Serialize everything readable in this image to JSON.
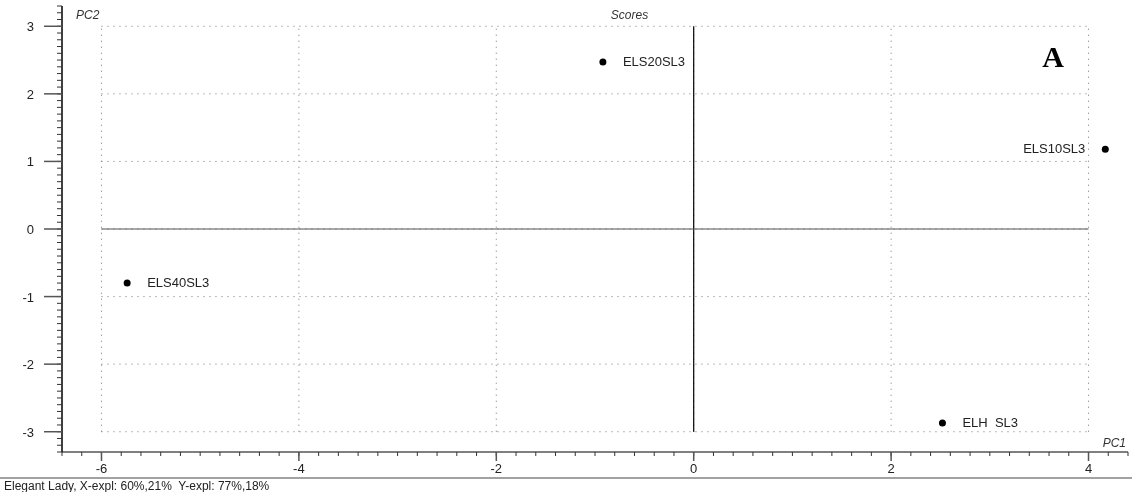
{
  "chart_data": {
    "type": "scatter",
    "title": "Scores",
    "xlabel": "PC1",
    "ylabel": "PC2",
    "series": [
      {
        "name": "ELS20SL3",
        "color": "#000000",
        "x": [
          -0.92
        ],
        "values": [
          2.47
        ]
      },
      {
        "name": "ELS10SL3",
        "color": "#000000",
        "x": [
          4.17
        ],
        "values": [
          1.18
        ]
      },
      {
        "name": "ELS40SL3",
        "color": "#000000",
        "x": [
          -5.74
        ],
        "values": [
          -0.8
        ]
      },
      {
        "name": "ELH  SL3",
        "color": "#000000",
        "x": [
          2.52
        ],
        "values": [
          -2.87
        ]
      }
    ],
    "xlim": [
      -6.4,
      4.4
    ],
    "ylim": [
      -3.3,
      3.3
    ],
    "xticks": [
      -6,
      -4,
      -2,
      0,
      2,
      4
    ],
    "yticks": [
      -3,
      -2,
      -1,
      0,
      1,
      2,
      3
    ],
    "grid": true,
    "marker": "circle",
    "ref_lines": [
      {
        "axis": "x",
        "value": 0,
        "color": "#000000"
      },
      {
        "axis": "y",
        "value": 0,
        "color": "#555555"
      }
    ],
    "annotations": [
      "A",
      "Elegant Lady, X-expl: 60%,21%  Y-expl: 77%,18%"
    ]
  }
}
